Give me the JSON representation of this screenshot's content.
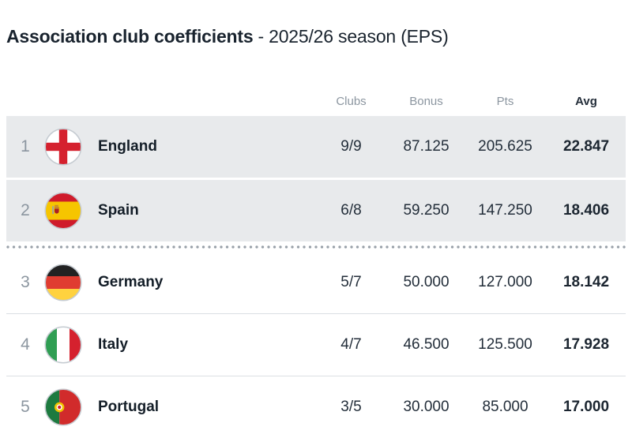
{
  "title": {
    "main": "Association club coefficients",
    "season": "- 2025/26 season (EPS)"
  },
  "table": {
    "headers": [
      "Clubs",
      "Bonus",
      "Pts",
      "Avg"
    ],
    "rows": [
      {
        "rank": "1",
        "country": "England",
        "flag": "england",
        "clubs": "9/9",
        "bonus": "87.125",
        "pts": "205.625",
        "avg": "22.847",
        "highlight": true,
        "divider_after": false
      },
      {
        "rank": "2",
        "country": "Spain",
        "flag": "spain",
        "clubs": "6/8",
        "bonus": "59.250",
        "pts": "147.250",
        "avg": "18.406",
        "highlight": true,
        "divider_after": true
      },
      {
        "rank": "3",
        "country": "Germany",
        "flag": "germany",
        "clubs": "5/7",
        "bonus": "50.000",
        "pts": "127.000",
        "avg": "18.142",
        "highlight": false,
        "divider_after": false
      },
      {
        "rank": "4",
        "country": "Italy",
        "flag": "italy",
        "clubs": "4/7",
        "bonus": "46.500",
        "pts": "125.500",
        "avg": "17.928",
        "highlight": false,
        "divider_after": false
      },
      {
        "rank": "5",
        "country": "Portugal",
        "flag": "portugal",
        "clubs": "3/5",
        "bonus": "30.000",
        "pts": "85.000",
        "avg": "17.000",
        "highlight": false,
        "divider_after": false
      }
    ]
  },
  "colors": {
    "highlight_row_bg": "#e8eaec",
    "divider_dot": "#99a1a9",
    "row_border": "#dbdfe3",
    "header_text": "#8c96a0",
    "primary_text": "#19232e",
    "flag_ring": "#c5cbd1"
  },
  "chart_data": {
    "type": "table",
    "title": "Association club coefficients - 2025/26 season (EPS)",
    "columns": [
      "Rank",
      "Country",
      "Clubs",
      "Bonus",
      "Pts",
      "Avg"
    ],
    "rows": [
      [
        1,
        "England",
        "9/9",
        87.125,
        205.625,
        22.847
      ],
      [
        2,
        "Spain",
        "6/8",
        59.25,
        147.25,
        18.406
      ],
      [
        3,
        "Germany",
        "5/7",
        50.0,
        127.0,
        18.142
      ],
      [
        4,
        "Italy",
        "4/7",
        46.5,
        125.5,
        17.928
      ],
      [
        5,
        "Portugal",
        "3/5",
        30.0,
        85.0,
        17.0
      ]
    ],
    "layout_hints": {
      "highlighted_ranks": [
        1,
        2
      ],
      "dotted_cutoff_after_rank": 2,
      "bold_column": "Avg"
    }
  }
}
